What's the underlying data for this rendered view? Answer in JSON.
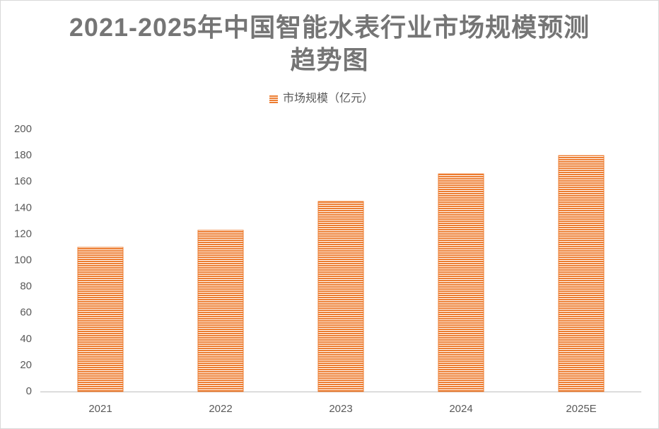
{
  "chart_data": {
    "type": "bar",
    "title": "2021-2025年中国智能水表行业市场规模预测趋势图",
    "categories": [
      "2021",
      "2022",
      "2023",
      "2024",
      "2025E"
    ],
    "series": [
      {
        "name": "市场规模（亿元）",
        "color": "#ed7d31",
        "values": [
          110,
          123,
          145,
          166,
          180
        ]
      }
    ],
    "ylim": [
      0,
      200
    ],
    "yticks": [
      0,
      20,
      40,
      60,
      80,
      100,
      120,
      140,
      160,
      180,
      200
    ],
    "grid": false,
    "legend": "top"
  }
}
